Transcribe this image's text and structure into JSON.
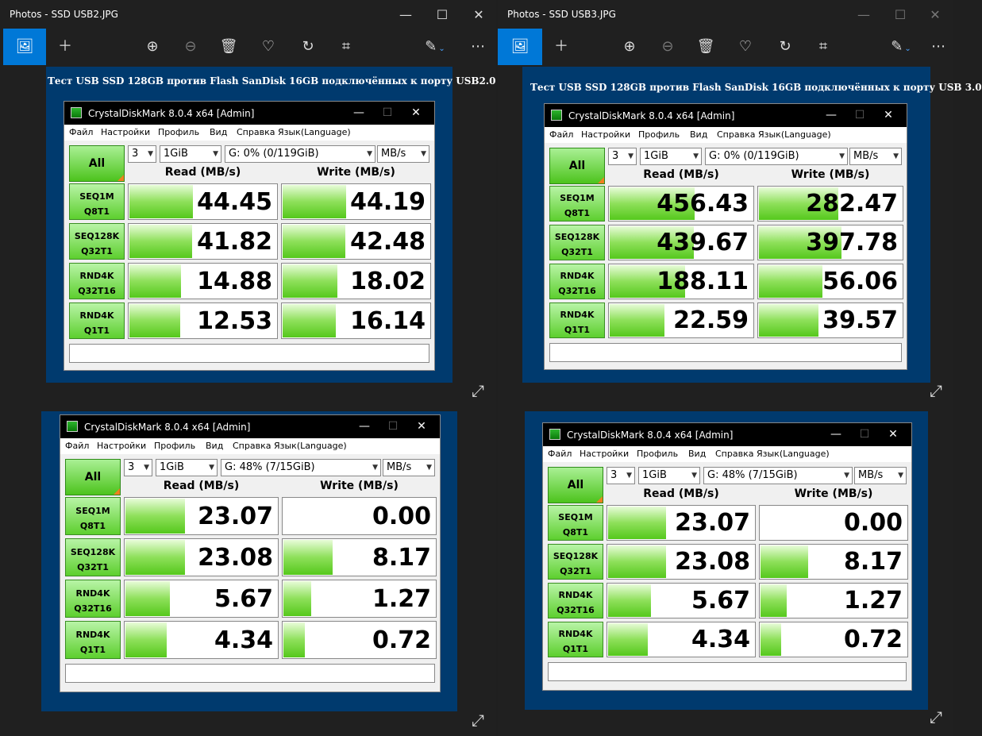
{
  "windows": [
    {
      "title": "Photos - SSD USB2.JPG",
      "image_caption": "Тест USB SSD 128GB против Flash SanDisk 16GB подключённых к порту USB2.0",
      "cdm_top": {
        "title": "CrystalDiskMark 8.0.4 x64 [Admin]",
        "count": "3",
        "size": "1GiB",
        "drive": "G: 0% (0/119GiB)",
        "unit": "MB/s",
        "read": [
          {
            "v": "44.45",
            "f": 0.43
          },
          {
            "v": "41.82",
            "f": 0.42
          },
          {
            "v": "14.88",
            "f": 0.35
          },
          {
            "v": "12.53",
            "f": 0.34
          }
        ],
        "write": [
          {
            "v": "44.19",
            "f": 0.43
          },
          {
            "v": "42.48",
            "f": 0.42
          },
          {
            "v": "18.02",
            "f": 0.37
          },
          {
            "v": "16.14",
            "f": 0.36
          }
        ]
      },
      "cdm_bottom": {
        "title": "CrystalDiskMark 8.0.4 x64 [Admin]",
        "count": "3",
        "size": "1GiB",
        "drive": "G: 48% (7/15GiB)",
        "unit": "MB/s",
        "read": [
          {
            "v": "23.07",
            "f": 0.39
          },
          {
            "v": "23.08",
            "f": 0.39
          },
          {
            "v": "5.67",
            "f": 0.29
          },
          {
            "v": "4.34",
            "f": 0.27
          }
        ],
        "write": [
          {
            "v": "0.00",
            "f": 0.0
          },
          {
            "v": "8.17",
            "f": 0.32
          },
          {
            "v": "1.27",
            "f": 0.18
          },
          {
            "v": "0.72",
            "f": 0.14
          }
        ]
      }
    },
    {
      "title": "Photos - SSD USB3.JPG",
      "image_caption": "Тест USB SSD 128GB против Flash SanDisk 16GB подключённых к порту USB 3.0",
      "cdm_top": {
        "title": "CrystalDiskMark 8.0.4 x64 [Admin]",
        "count": "3",
        "size": "1GiB",
        "drive": "G: 0% (0/119GiB)",
        "unit": "MB/s",
        "read": [
          {
            "v": "456.43",
            "f": 0.59
          },
          {
            "v": "439.67",
            "f": 0.58
          },
          {
            "v": "188.11",
            "f": 0.52
          },
          {
            "v": "22.59",
            "f": 0.38
          }
        ],
        "write": [
          {
            "v": "282.47",
            "f": 0.55
          },
          {
            "v": "397.78",
            "f": 0.57
          },
          {
            "v": "56.06",
            "f": 0.44
          },
          {
            "v": "39.57",
            "f": 0.41
          }
        ]
      },
      "cdm_bottom": {
        "title": "CrystalDiskMark 8.0.4 x64 [Admin]",
        "count": "3",
        "size": "1GiB",
        "drive": "G: 48% (7/15GiB)",
        "unit": "MB/s",
        "read": [
          {
            "v": "23.07",
            "f": 0.39
          },
          {
            "v": "23.08",
            "f": 0.39
          },
          {
            "v": "5.67",
            "f": 0.29
          },
          {
            "v": "4.34",
            "f": 0.27
          }
        ],
        "write": [
          {
            "v": "0.00",
            "f": 0.0
          },
          {
            "v": "8.17",
            "f": 0.32
          },
          {
            "v": "1.27",
            "f": 0.18
          },
          {
            "v": "0.72",
            "f": 0.14
          }
        ]
      }
    }
  ],
  "cdm_labels": {
    "menu": [
      "Файл",
      "Настройки",
      "Профиль",
      "Вид",
      "Справка",
      "Язык(Language)"
    ],
    "all": "All",
    "read_header": "Read (MB/s)",
    "write_header": "Write (MB/s)",
    "rows": [
      [
        "SEQ1M",
        "Q8T1"
      ],
      [
        "SEQ128K",
        "Q32T1"
      ],
      [
        "RND4K",
        "Q32T16"
      ],
      [
        "RND4K",
        "Q1T1"
      ]
    ]
  },
  "icons": {
    "image": "image-icon",
    "add": "plus-icon",
    "zoom_in": "zoom-in-icon",
    "zoom_out": "zoom-out-icon",
    "delete": "trash-icon",
    "favorite": "heart-icon",
    "rotate": "rotate-icon",
    "crop": "crop-icon",
    "edit": "edit-icon",
    "more": "more-icon",
    "expand": "expand-icon"
  }
}
